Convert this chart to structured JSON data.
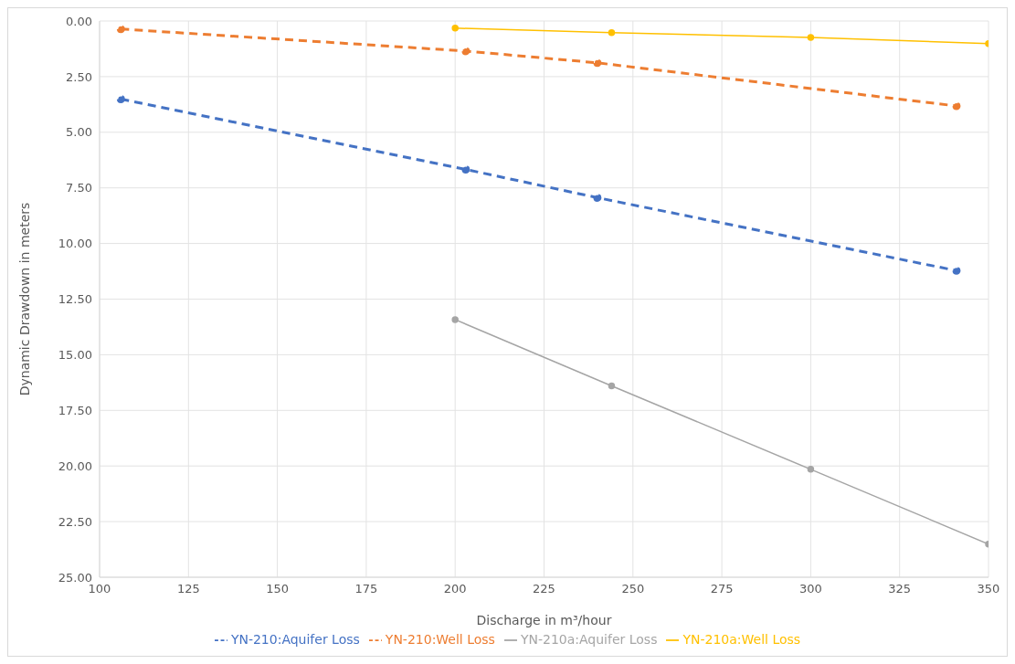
{
  "chart_data": {
    "type": "line",
    "xlabel": "Discharge in m³/hour",
    "ylabel": "Dynamic Drawdown in meters",
    "xlim": [
      100,
      350
    ],
    "xticks": [
      100,
      125,
      150,
      175,
      200,
      225,
      250,
      275,
      300,
      325,
      350
    ],
    "ylim": [
      25,
      0
    ],
    "yticks": [
      {
        "value": 0,
        "label": "0.00"
      },
      {
        "value": 2.5,
        "label": "2.50"
      },
      {
        "value": 5,
        "label": "5.00"
      },
      {
        "value": 7.5,
        "label": "7.50"
      },
      {
        "value": 10,
        "label": "10.00"
      },
      {
        "value": 12.5,
        "label": "12.50"
      },
      {
        "value": 15,
        "label": "15.00"
      },
      {
        "value": 17.5,
        "label": "17.50"
      },
      {
        "value": 20,
        "label": "20.00"
      },
      {
        "value": 22.5,
        "label": "22.50"
      },
      {
        "value": 25,
        "label": "25.00"
      }
    ],
    "grid": true,
    "legend": "bottom",
    "marker": "circle",
    "series": [
      {
        "name": "YN-210:Aquifer Loss",
        "color": "#4472c4",
        "line_style": "dashed",
        "x": [
          106,
          203,
          240,
          341
        ],
        "values": [
          3.51,
          6.67,
          7.94,
          11.22
        ]
      },
      {
        "name": "YN-210:Well Loss",
        "color": "#ed7d31",
        "line_style": "dashed",
        "x": [
          106,
          203,
          240,
          341
        ],
        "values": [
          0.36,
          1.35,
          1.88,
          3.82
        ]
      },
      {
        "name": "YN-210a:Aquifer Loss",
        "color": "#a5a5a5",
        "line_style": "solid",
        "x": [
          200,
          244,
          300,
          350
        ],
        "values": [
          13.42,
          16.4,
          20.15,
          23.51
        ]
      },
      {
        "name": "YN-210a:Well Loss",
        "color": "#ffc000",
        "line_style": "solid",
        "x": [
          200,
          244,
          300,
          350
        ],
        "values": [
          0.32,
          0.52,
          0.74,
          1.02
        ]
      }
    ]
  }
}
